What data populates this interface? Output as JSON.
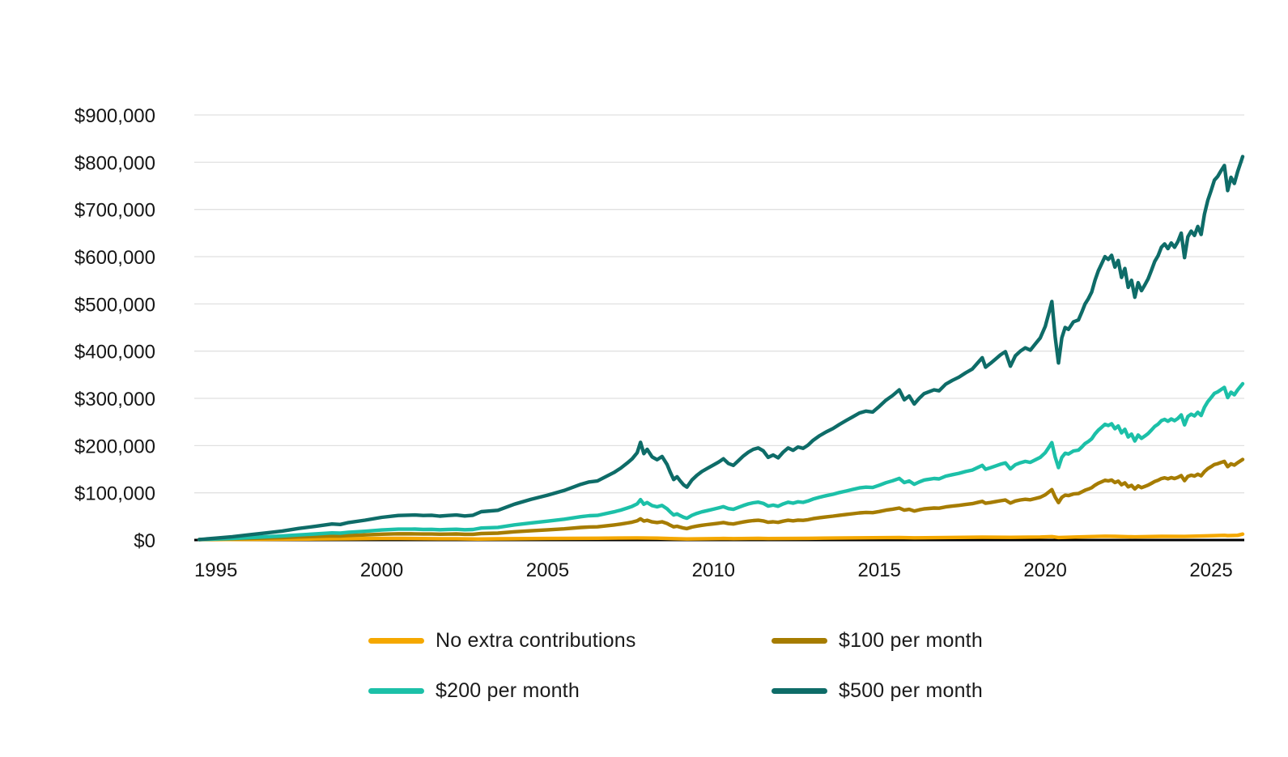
{
  "chart_data": {
    "type": "line",
    "title": "",
    "xlabel": "",
    "ylabel": "",
    "grid": true,
    "legend_position": "bottom",
    "x_axis": {
      "range": [
        1994.35,
        2026.0
      ],
      "ticks": [
        {
          "value": 1995,
          "label": "1995"
        },
        {
          "value": 2000,
          "label": "2000"
        },
        {
          "value": 2005,
          "label": "2005"
        },
        {
          "value": 2010,
          "label": "2010"
        },
        {
          "value": 2015,
          "label": "2015"
        },
        {
          "value": 2020,
          "label": "2020"
        },
        {
          "value": 2025,
          "label": "2025"
        }
      ]
    },
    "y_axis": {
      "range": [
        0,
        950000
      ],
      "ticks": [
        {
          "value": 0,
          "label": "$0"
        },
        {
          "value": 100000,
          "label": "$100,000"
        },
        {
          "value": 200000,
          "label": "$200,000"
        },
        {
          "value": 300000,
          "label": "$300,000"
        },
        {
          "value": 400000,
          "label": "$400,000"
        },
        {
          "value": 500000,
          "label": "$500,000"
        },
        {
          "value": 600000,
          "label": "$600,000"
        },
        {
          "value": 700000,
          "label": "$700,000"
        },
        {
          "value": 800000,
          "label": "$800,000"
        },
        {
          "value": 900000,
          "label": "$900,000"
        }
      ]
    },
    "x": [
      1994.5,
      1995,
      1995.5,
      1996,
      1996.5,
      1997,
      1997.5,
      1998,
      1998.5,
      1998.75,
      1999,
      1999.5,
      2000,
      2000.5,
      2001,
      2001.25,
      2001.5,
      2001.75,
      2002,
      2002.25,
      2002.5,
      2002.75,
      2003,
      2003.5,
      2004,
      2004.5,
      2005,
      2005.5,
      2006,
      2006.25,
      2006.5,
      2007,
      2007.2,
      2007.4,
      2007.55,
      2007.7,
      2007.8,
      2007.9,
      2008,
      2008.15,
      2008.3,
      2008.45,
      2008.6,
      2008.7,
      2008.8,
      2008.9,
      2009,
      2009.1,
      2009.2,
      2009.35,
      2009.5,
      2009.65,
      2009.8,
      2010,
      2010.15,
      2010.3,
      2010.45,
      2010.6,
      2010.75,
      2010.9,
      2011.05,
      2011.2,
      2011.35,
      2011.5,
      2011.65,
      2011.8,
      2011.95,
      2012.1,
      2012.25,
      2012.4,
      2012.55,
      2012.7,
      2012.85,
      2013,
      2013.2,
      2013.4,
      2013.6,
      2013.8,
      2014,
      2014.2,
      2014.4,
      2014.6,
      2014.8,
      2015,
      2015.2,
      2015.4,
      2015.6,
      2015.75,
      2015.9,
      2016.05,
      2016.2,
      2016.35,
      2016.5,
      2016.65,
      2016.8,
      2017,
      2017.2,
      2017.4,
      2017.6,
      2017.8,
      2018,
      2018.1,
      2018.2,
      2018.35,
      2018.5,
      2018.65,
      2018.8,
      2018.95,
      2019.1,
      2019.25,
      2019.4,
      2019.55,
      2019.7,
      2019.85,
      2020,
      2020.1,
      2020.2,
      2020.3,
      2020.4,
      2020.5,
      2020.6,
      2020.7,
      2020.85,
      2021,
      2021.1,
      2021.2,
      2021.3,
      2021.4,
      2021.5,
      2021.6,
      2021.7,
      2021.8,
      2021.9,
      2022,
      2022.1,
      2022.2,
      2022.3,
      2022.4,
      2022.5,
      2022.6,
      2022.7,
      2022.8,
      2022.9,
      2023,
      2023.1,
      2023.2,
      2023.3,
      2023.4,
      2023.5,
      2023.6,
      2023.7,
      2023.8,
      2023.9,
      2024,
      2024.1,
      2024.2,
      2024.3,
      2024.4,
      2024.5,
      2024.6,
      2024.7,
      2024.8,
      2024.9,
      2025,
      2025.1,
      2025.2,
      2025.3,
      2025.4,
      2025.5,
      2025.6,
      2025.7,
      2025.8,
      2025.95
    ],
    "series": [
      {
        "name": "No extra contributions",
        "color": "#F5A800",
        "x": [
          1994.5,
          1996,
          1998,
          1999,
          2000,
          2000.5,
          2001.75,
          2002.25,
          2002.9,
          2003.5,
          2005,
          2006.5,
          2007.7,
          2008.3,
          2008.8,
          2009.2,
          2010.3,
          2010.6,
          2011.35,
          2011.65,
          2012.85,
          2014,
          2015.6,
          2016.05,
          2017,
          2018.1,
          2018.95,
          2019.85,
          2020.2,
          2020.4,
          2021,
          2021.8,
          2022.1,
          2022.5,
          2022.7,
          2023.5,
          2024.2,
          2024.9,
          2025.4,
          2025.5,
          2025.8,
          2025.95
        ],
        "values": [
          1000,
          1400,
          2200,
          2700,
          3400,
          3500,
          2700,
          2700,
          2100,
          2500,
          3200,
          3700,
          4500,
          3900,
          2900,
          2200,
          3200,
          2900,
          3600,
          3100,
          3600,
          4400,
          5300,
          4700,
          5300,
          6000,
          5600,
          6300,
          7200,
          5300,
          6500,
          8100,
          7700,
          7000,
          6700,
          7800,
          7500,
          9000,
          9900,
          9200,
          10000,
          12500
        ]
      },
      {
        "name": "$100 per month",
        "color": "#A67C00",
        "values": [
          1000,
          1700,
          2400,
          3300,
          4200,
          5200,
          6500,
          7600,
          8800,
          8400,
          9600,
          10800,
          12300,
          13200,
          13100,
          12700,
          12700,
          12300,
          12600,
          12800,
          12100,
          12200,
          13800,
          14600,
          17500,
          19600,
          21600,
          23600,
          26500,
          27600,
          28000,
          31900,
          33800,
          36000,
          37900,
          40600,
          45000,
          40100,
          41800,
          38400,
          37100,
          38600,
          35000,
          31200,
          27900,
          29200,
          27200,
          25300,
          24200,
          27400,
          29500,
          31200,
          32500,
          34200,
          35500,
          37000,
          34800,
          33900,
          36100,
          38200,
          39900,
          41200,
          41900,
          40500,
          37500,
          38600,
          37300,
          39900,
          41800,
          40700,
          42200,
          41600,
          43100,
          45200,
          47300,
          49000,
          50500,
          52400,
          54100,
          55800,
          57500,
          58400,
          57900,
          60400,
          63200,
          65300,
          67800,
          63300,
          65000,
          61400,
          63900,
          66000,
          66900,
          67700,
          67300,
          70200,
          71900,
          73400,
          75300,
          77000,
          80300,
          82000,
          77800,
          79400,
          81300,
          83200,
          84700,
          78100,
          82700,
          84800,
          86300,
          85200,
          88000,
          90600,
          95700,
          101100,
          106800,
          90900,
          79200,
          90400,
          95000,
          94200,
          97500,
          98400,
          101800,
          105500,
          107800,
          110800,
          116000,
          120200,
          123300,
          126500,
          125200,
          127100,
          121800,
          124700,
          117100,
          121100,
          112600,
          115800,
          108200,
          114700,
          111000,
          113500,
          116300,
          120000,
          124000,
          126500,
          130200,
          131700,
          129600,
          132100,
          130200,
          132700,
          136500,
          125600,
          134800,
          137400,
          135500,
          139400,
          135900,
          144900,
          151000,
          155400,
          160000,
          161700,
          164200,
          166500,
          155400,
          161300,
          158500,
          163800,
          170500
        ]
      },
      {
        "name": "$200 per month",
        "color": "#1CC0A8",
        "values": [
          1000,
          2300,
          3500,
          5200,
          6900,
          8600,
          10800,
          12900,
          15100,
          14600,
          16400,
          18600,
          21200,
          22900,
          23100,
          22500,
          22700,
          21800,
          22500,
          22800,
          21800,
          22300,
          25400,
          26700,
          32100,
          36200,
          39900,
          44000,
          49400,
          51400,
          52200,
          59700,
          63300,
          67800,
          71400,
          76700,
          85500,
          75800,
          79300,
          72800,
          70300,
          73200,
          66200,
          59200,
          52900,
          55400,
          51600,
          48200,
          46100,
          52300,
          56400,
          59700,
          62100,
          65400,
          67900,
          70700,
          66600,
          64900,
          69100,
          73100,
          76400,
          78900,
          80200,
          77600,
          71900,
          73900,
          71500,
          76400,
          80100,
          78000,
          80900,
          79700,
          82600,
          86700,
          90700,
          94000,
          96900,
          100600,
          103800,
          107100,
          110400,
          112000,
          111200,
          116100,
          121400,
          125500,
          130400,
          121700,
          125000,
          118000,
          122900,
          127000,
          128700,
          130300,
          129500,
          135200,
          138400,
          141300,
          145000,
          148200,
          154700,
          158000,
          149800,
          153100,
          156700,
          160400,
          163300,
          150600,
          159500,
          163600,
          166500,
          164400,
          169700,
          175000,
          184800,
          195300,
          206300,
          175700,
          153200,
          174800,
          183800,
          182100,
          188600,
          190300,
          196800,
          204100,
          208600,
          214300,
          224500,
          232600,
          238700,
          244900,
          242400,
          246100,
          235800,
          241500,
          226800,
          234600,
          218200,
          224300,
          209600,
          222300,
          215300,
          220100,
          225500,
          232800,
          240500,
          245400,
          252700,
          255500,
          251500,
          256300,
          252700,
          257500,
          264900,
          243700,
          261600,
          266500,
          262900,
          270600,
          263700,
          281200,
          293000,
          301500,
          310500,
          313800,
          318600,
          323100,
          301500,
          313000,
          307600,
          317800,
          330900
        ]
      },
      {
        "name": "$500 per month",
        "color": "#0E6C68",
        "values": [
          1000,
          4000,
          7000,
          11000,
          15000,
          19000,
          24500,
          29000,
          34000,
          33000,
          37000,
          42000,
          48000,
          52000,
          53000,
          52000,
          52500,
          50500,
          52000,
          53000,
          51000,
          52500,
          60000,
          63000,
          76000,
          86000,
          95000,
          105000,
          118000,
          123000,
          125000,
          143000,
          152000,
          163000,
          172000,
          185000,
          207000,
          183000,
          192000,
          176000,
          170000,
          177000,
          160000,
          143000,
          128000,
          134000,
          125000,
          117000,
          112000,
          127000,
          137000,
          145000,
          151000,
          159000,
          165000,
          172000,
          162000,
          158000,
          168000,
          178000,
          186000,
          192000,
          195000,
          189000,
          175000,
          180000,
          174000,
          186000,
          195000,
          190000,
          197000,
          194000,
          201000,
          211000,
          221000,
          229000,
          236000,
          245000,
          253000,
          261000,
          269000,
          273000,
          271000,
          283000,
          296000,
          306000,
          318000,
          297000,
          305000,
          288000,
          300000,
          310000,
          314000,
          318000,
          316000,
          330000,
          338000,
          345000,
          354000,
          362000,
          378000,
          386000,
          366000,
          374000,
          383000,
          392000,
          399000,
          368000,
          390000,
          400000,
          407000,
          402000,
          415000,
          428000,
          452000,
          478000,
          505000,
          430000,
          375000,
          428000,
          450000,
          446000,
          462000,
          466000,
          482000,
          500000,
          511000,
          525000,
          550000,
          570000,
          585000,
          600000,
          594000,
          603000,
          578000,
          592000,
          556000,
          575000,
          535000,
          550000,
          514000,
          545000,
          528000,
          540000,
          553000,
          571000,
          590000,
          602000,
          620000,
          627000,
          617000,
          629000,
          620000,
          632000,
          650000,
          598000,
          642000,
          654000,
          645000,
          664000,
          647000,
          690000,
          719000,
          740000,
          762000,
          770000,
          782000,
          793000,
          740000,
          768000,
          755000,
          780000,
          812000
        ]
      }
    ],
    "legend_order": [
      "No extra contributions",
      "$100 per month",
      "$200 per month",
      "$500 per month"
    ]
  }
}
